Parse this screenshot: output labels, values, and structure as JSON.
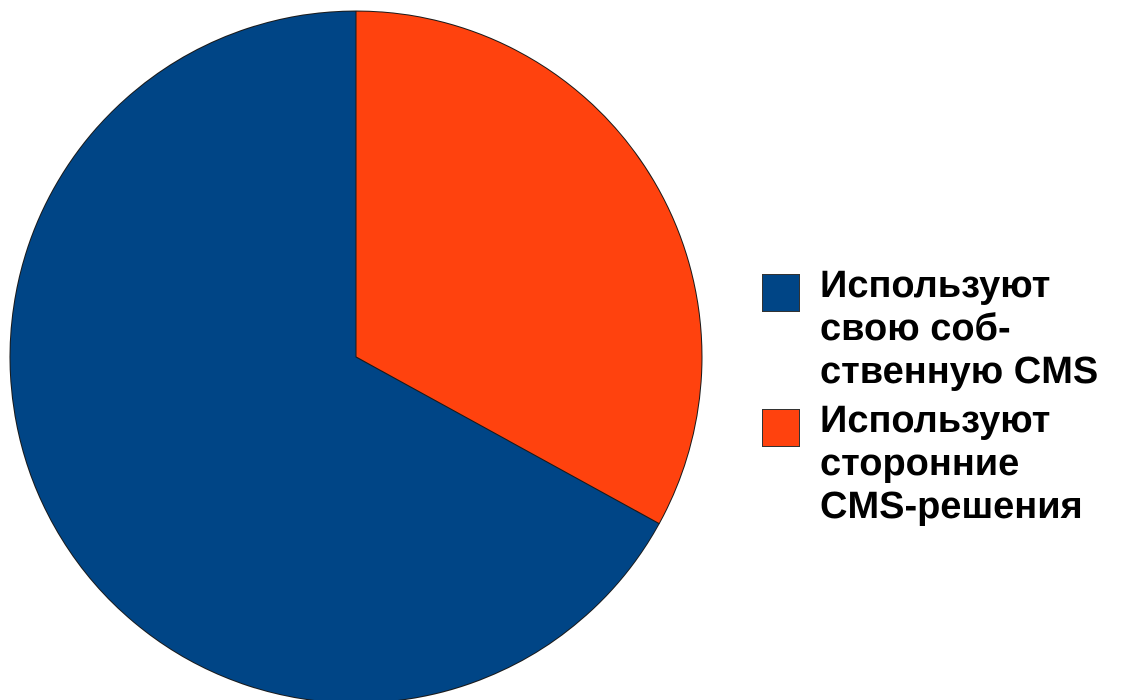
{
  "chart_data": {
    "type": "pie",
    "title": "",
    "legend_position": "right",
    "series": [
      {
        "name": "Используют\nсвою соб-\nственную CMS",
        "value": 67,
        "color": "#004586"
      },
      {
        "name": "Используют\nсторонние\nCMS-решения",
        "value": 33,
        "color": "#ff420e"
      }
    ]
  }
}
